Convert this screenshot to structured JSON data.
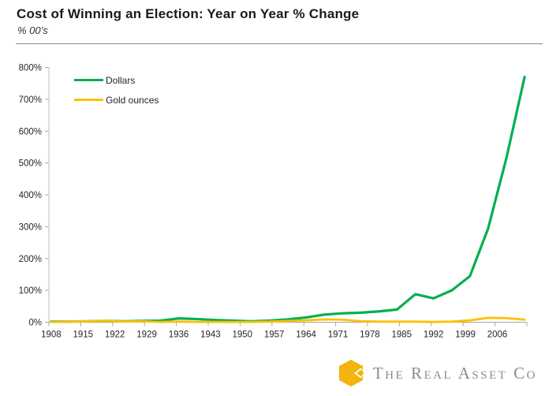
{
  "header": {
    "title": "Cost of Winning an Election: Year on Year % Change",
    "subtitle": "% 00&rsquo;s",
    "subtitle_plain": "% 00’s"
  },
  "chart_data": {
    "type": "line",
    "title": "Cost of Winning an Election: Year on Year % Change",
    "subtitle": "% 00’s",
    "x": {
      "years": [
        1908,
        1912,
        1916,
        1920,
        1924,
        1928,
        1932,
        1936,
        1940,
        1944,
        1948,
        1952,
        1956,
        1960,
        1964,
        1968,
        1972,
        1976,
        1980,
        1984,
        1988,
        1992,
        1996,
        2000,
        2004,
        2008,
        2012
      ],
      "tick_labels": [
        "1908",
        "1915",
        "1922",
        "1929",
        "1936",
        "1943",
        "1950",
        "1957",
        "1964",
        "1971",
        "1978",
        "1985",
        "1992",
        "1999",
        "2006"
      ],
      "axis_start_year": 1908,
      "axis_end_year": 2012,
      "label_interval_years": 7
    },
    "y": {
      "tick_labels": [
        "0%",
        "100%",
        "200%",
        "300%",
        "400%",
        "500%",
        "600%",
        "700%",
        "800%"
      ],
      "min": 0,
      "max": 800,
      "step": 100,
      "unit": "%"
    },
    "series": [
      {
        "name": "Dollars",
        "color": "#00B050",
        "values": [
          2,
          2,
          3,
          4,
          3,
          4,
          5,
          12,
          10,
          7,
          5,
          3,
          5,
          9,
          15,
          24,
          28,
          30,
          34,
          40,
          88,
          75,
          100,
          145,
          295,
          515,
          770
        ]
      },
      {
        "name": "Gold ounces",
        "color": "#FFC000",
        "values": [
          1,
          2,
          3,
          4,
          2,
          3,
          1,
          2,
          1,
          1,
          1,
          1,
          2,
          4,
          6,
          9,
          8,
          3,
          2,
          2,
          2,
          1,
          2,
          6,
          14,
          13,
          8
        ]
      }
    ],
    "legend_position": "top-left",
    "grid": "none"
  },
  "footer": {
    "brand": "The Real Asset Co",
    "logo_icon": "gold-cube-hexagon-icon"
  },
  "colors": {
    "axis_line": "#BFBFBF",
    "tick_mark": "#A6A6A6",
    "tick_text": "#262626",
    "separator": "#8C8C8C",
    "brand_text": "#8C8C8C",
    "brand_gold": "#F2B40D",
    "dollars_green": "#00B050",
    "gold_ounces_yellow": "#FFC000"
  }
}
